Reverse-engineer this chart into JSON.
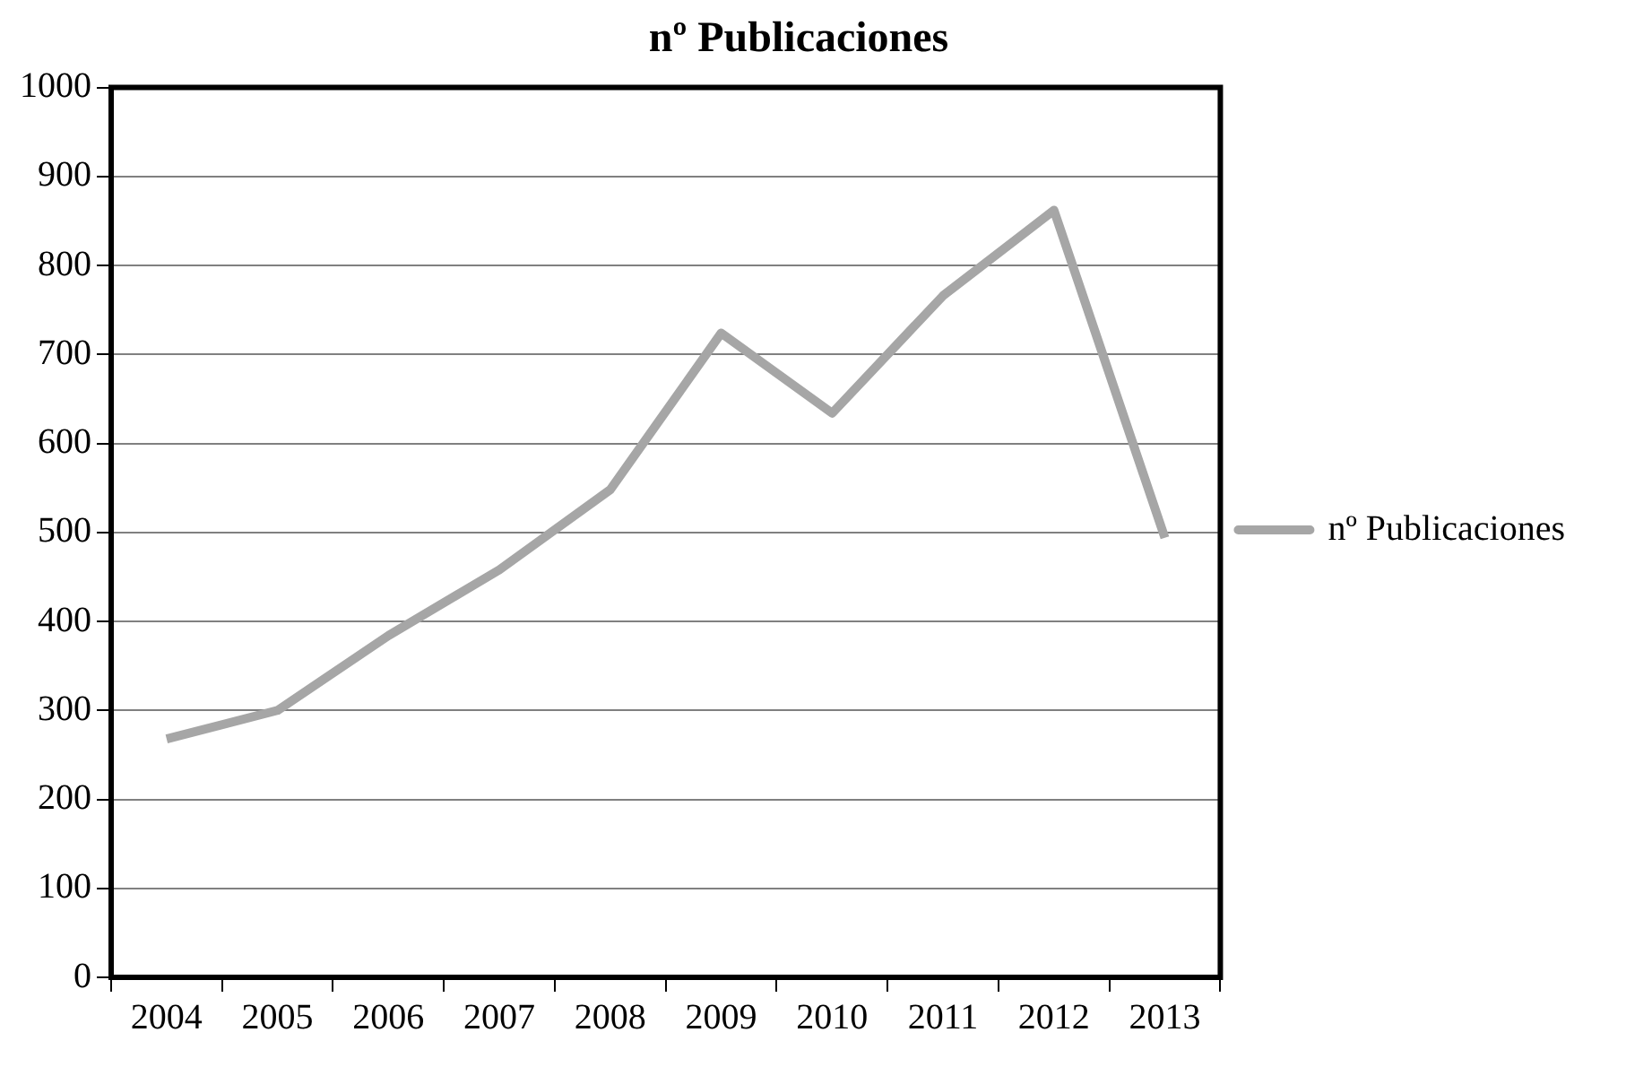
{
  "chart_data": {
    "type": "line",
    "title": "nº Publicaciones",
    "categories": [
      "2004",
      "2005",
      "2006",
      "2007",
      "2008",
      "2009",
      "2010",
      "2011",
      "2012",
      "2013"
    ],
    "series": [
      {
        "name": "nº Publicaciones",
        "color": "#a6a6a6",
        "values": [
          268,
          300,
          384,
          458,
          548,
          724,
          634,
          766,
          862,
          494
        ]
      }
    ],
    "ylim": [
      0,
      1000
    ],
    "yticks": [
      0,
      100,
      200,
      300,
      400,
      500,
      600,
      700,
      800,
      900,
      1000
    ],
    "grid": "y",
    "legend": "right",
    "marker": "none",
    "line_style": "solid"
  }
}
